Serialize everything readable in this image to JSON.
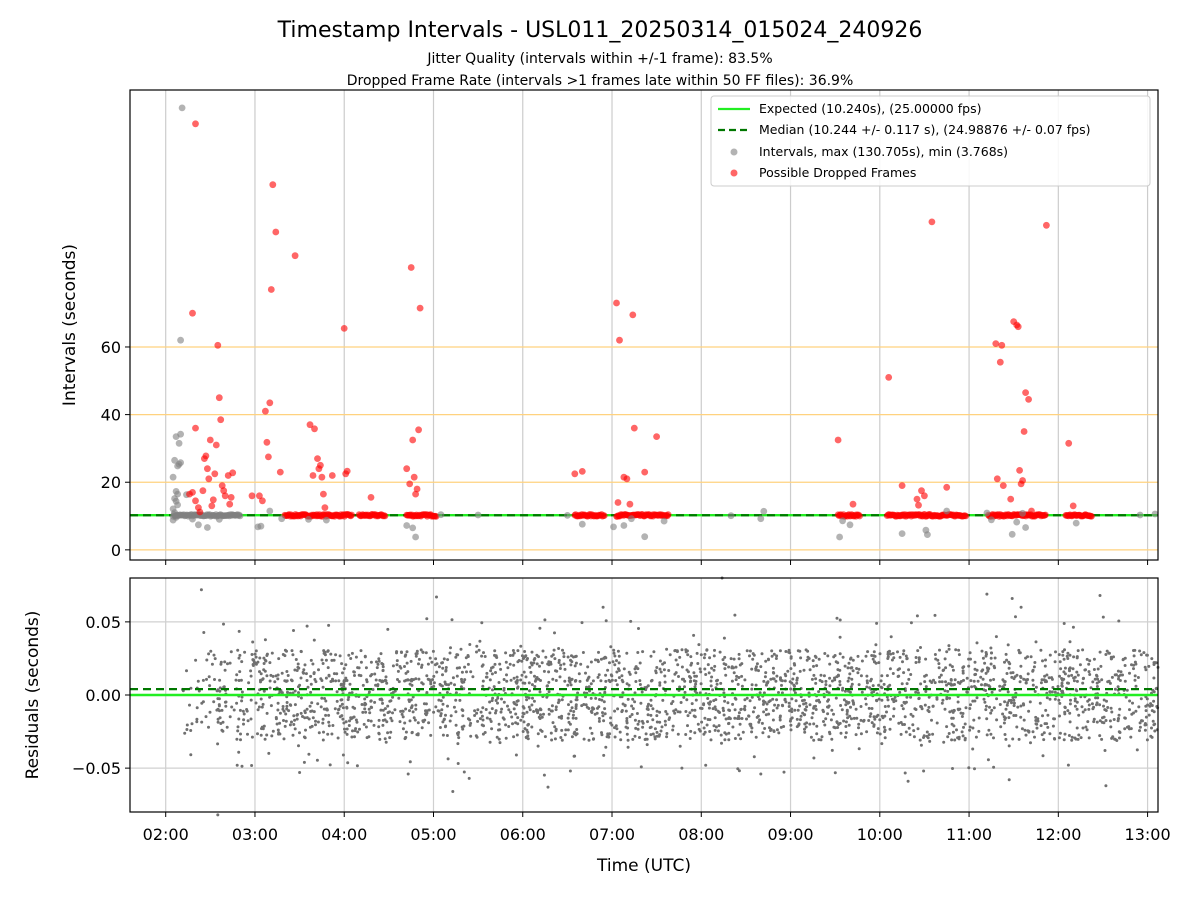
{
  "chart_data": [
    {
      "type": "scatter",
      "title": "Timestamp Intervals - USL011_20250314_015024_240926",
      "subtitle_lines": [
        "Jitter Quality (intervals within +/-1 frame): 83.5%",
        "Dropped Frame Rate (intervals >1 frames late within 50 FF files): 36.9%"
      ],
      "ylabel": "Intervals (seconds)",
      "xlim": [
        "01:36",
        "13:07"
      ],
      "ylim": [
        -3,
        136
      ],
      "yticks": [
        0,
        20,
        40,
        60
      ],
      "ytick_labels": [
        "0",
        "20",
        "40",
        "60"
      ],
      "x_gridlines": [
        "02:00",
        "03:00",
        "04:00",
        "05:00",
        "06:00",
        "07:00",
        "08:00",
        "09:00",
        "10:00",
        "11:00",
        "12:00",
        "13:00"
      ],
      "y_gridlines": [
        0,
        20,
        40,
        60
      ],
      "grid": true,
      "legend_position": "top-right",
      "expected_line": {
        "label": "Expected (10.240s), (25.00000 fps)",
        "value": 10.24,
        "color": "#22ee22"
      },
      "median_line": {
        "label": "Median (10.244 +/- 0.117 s), (24.98876 +/- 0.07 fps)",
        "value": 10.244,
        "color": "#007700"
      },
      "series": [
        {
          "name": "Intervals, max (130.705s), min (3.768s)",
          "color": "#808080",
          "points": [
            [
              "02:11",
              130.7
            ],
            [
              "02:07",
              33.5
            ],
            [
              "02:10",
              34.2
            ],
            [
              "02:09",
              31.5
            ],
            [
              "02:06",
              26.5
            ],
            [
              "02:08",
              24.8
            ],
            [
              "02:09",
              25.3
            ],
            [
              "02:10",
              25.8
            ],
            [
              "02:05",
              21.5
            ],
            [
              "02:07",
              17.3
            ],
            [
              "02:08",
              16.5
            ],
            [
              "02:06",
              15.2
            ],
            [
              "02:07",
              14.4
            ],
            [
              "02:08",
              13.3
            ],
            [
              "02:05",
              12.1
            ],
            [
              "02:06",
              11.0
            ],
            [
              "02:07",
              9.6
            ],
            [
              "02:05",
              8.8
            ],
            [
              "02:10",
              62.0
            ],
            [
              "02:14",
              16.3
            ],
            [
              "02:18",
              9.1
            ],
            [
              "02:22",
              7.4
            ],
            [
              "02:28",
              6.6
            ],
            [
              "02:36",
              9.0
            ],
            [
              "03:02",
              6.8
            ],
            [
              "03:04",
              7.0
            ],
            [
              "03:10",
              11.5
            ],
            [
              "03:18",
              9.2
            ],
            [
              "03:36",
              9.0
            ],
            [
              "03:48",
              8.8
            ],
            [
              "04:42",
              7.2
            ],
            [
              "04:48",
              3.8
            ],
            [
              "04:46",
              6.5
            ],
            [
              "05:05",
              10.4
            ],
            [
              "05:30",
              10.3
            ],
            [
              "06:30",
              10.2
            ],
            [
              "06:40",
              7.6
            ],
            [
              "07:01",
              6.8
            ],
            [
              "07:08",
              7.2
            ],
            [
              "07:13",
              9.2
            ],
            [
              "07:22",
              3.9
            ],
            [
              "07:35",
              8.5
            ],
            [
              "08:20",
              10.1
            ],
            [
              "08:40",
              9.2
            ],
            [
              "08:42",
              11.4
            ],
            [
              "09:35",
              8.6
            ],
            [
              "09:33",
              3.8
            ],
            [
              "09:40",
              7.4
            ],
            [
              "10:15",
              4.8
            ],
            [
              "10:31",
              5.8
            ],
            [
              "10:32",
              4.5
            ],
            [
              "10:45",
              11.5
            ],
            [
              "11:12",
              10.9
            ],
            [
              "11:15",
              8.9
            ],
            [
              "11:29",
              4.6
            ],
            [
              "11:32",
              8.2
            ],
            [
              "11:38",
              6.6
            ],
            [
              "11:36",
              10.8
            ],
            [
              "12:12",
              7.9
            ],
            [
              "12:55",
              10.3
            ],
            [
              "13:05",
              10.6
            ]
          ]
        },
        {
          "name": "Possible Dropped Frames",
          "color": "#ff0000",
          "points": [
            [
              "02:20",
              126.0
            ],
            [
              "02:18",
              70.0
            ],
            [
              "02:20",
              36.0
            ],
            [
              "02:16",
              16.5
            ],
            [
              "02:18",
              17.0
            ],
            [
              "02:20",
              14.5
            ],
            [
              "02:22",
              12.5
            ],
            [
              "02:23",
              11.2
            ],
            [
              "02:25",
              17.5
            ],
            [
              "02:26",
              27.0
            ],
            [
              "02:27",
              27.8
            ],
            [
              "02:28",
              24.0
            ],
            [
              "02:29",
              21.0
            ],
            [
              "02:30",
              32.5
            ],
            [
              "02:31",
              13.0
            ],
            [
              "02:32",
              14.8
            ],
            [
              "02:33",
              22.5
            ],
            [
              "02:34",
              31.0
            ],
            [
              "02:35",
              60.5
            ],
            [
              "02:36",
              45.0
            ],
            [
              "02:37",
              38.5
            ],
            [
              "02:38",
              19.0
            ],
            [
              "02:39",
              17.5
            ],
            [
              "02:40",
              16.0
            ],
            [
              "02:42",
              22.0
            ],
            [
              "02:45",
              22.8
            ],
            [
              "02:43",
              13.5
            ],
            [
              "02:44",
              15.5
            ],
            [
              "02:58",
              16.0
            ],
            [
              "03:03",
              16.0
            ],
            [
              "03:05",
              14.5
            ],
            [
              "03:07",
              41.0
            ],
            [
              "03:08",
              31.8
            ],
            [
              "03:09",
              27.5
            ],
            [
              "03:10",
              43.5
            ],
            [
              "03:11",
              77.0
            ],
            [
              "03:12",
              108.0
            ],
            [
              "03:14",
              94.0
            ],
            [
              "03:17",
              23.0
            ],
            [
              "03:27",
              87.0
            ],
            [
              "03:37",
              37.0
            ],
            [
              "03:40",
              35.8
            ],
            [
              "03:42",
              27.0
            ],
            [
              "03:43",
              24.0
            ],
            [
              "03:44",
              25.0
            ],
            [
              "03:45",
              21.5
            ],
            [
              "03:46",
              16.5
            ],
            [
              "03:47",
              12.5
            ],
            [
              "03:39",
              22.0
            ],
            [
              "03:52",
              22.0
            ],
            [
              "04:00",
              65.5
            ],
            [
              "04:01",
              22.5
            ],
            [
              "04:02",
              23.3
            ],
            [
              "04:18",
              15.5
            ],
            [
              "04:42",
              24.0
            ],
            [
              "04:44",
              19.5
            ],
            [
              "04:45",
              83.5
            ],
            [
              "04:46",
              32.5
            ],
            [
              "04:47",
              21.5
            ],
            [
              "04:48",
              16.5
            ],
            [
              "04:49",
              18.0
            ],
            [
              "04:50",
              35.5
            ],
            [
              "04:51",
              71.5
            ],
            [
              "06:35",
              22.5
            ],
            [
              "06:40",
              23.2
            ],
            [
              "07:03",
              73.0
            ],
            [
              "07:05",
              62.0
            ],
            [
              "07:08",
              21.5
            ],
            [
              "07:10",
              21.0
            ],
            [
              "07:14",
              69.5
            ],
            [
              "07:15",
              36.0
            ],
            [
              "07:22",
              23.0
            ],
            [
              "07:30",
              33.5
            ],
            [
              "07:04",
              14.0
            ],
            [
              "07:12",
              13.5
            ],
            [
              "09:32",
              32.5
            ],
            [
              "09:42",
              13.5
            ],
            [
              "10:06",
              51.0
            ],
            [
              "10:15",
              19.0
            ],
            [
              "10:25",
              15.0
            ],
            [
              "10:28",
              17.5
            ],
            [
              "10:30",
              16.0
            ],
            [
              "10:26",
              13.2
            ],
            [
              "10:35",
              97.0
            ],
            [
              "10:45",
              18.5
            ],
            [
              "11:18",
              61.0
            ],
            [
              "11:21",
              55.5
            ],
            [
              "11:22",
              60.5
            ],
            [
              "11:19",
              21.0
            ],
            [
              "11:23",
              19.0
            ],
            [
              "11:28",
              15.0
            ],
            [
              "11:30",
              67.5
            ],
            [
              "11:32",
              66.5
            ],
            [
              "11:33",
              66.0
            ],
            [
              "11:34",
              23.5
            ],
            [
              "11:35",
              19.5
            ],
            [
              "11:36",
              20.5
            ],
            [
              "11:38",
              46.5
            ],
            [
              "11:40",
              44.5
            ],
            [
              "11:37",
              35.0
            ],
            [
              "11:42",
              11.5
            ],
            [
              "11:52",
              96.0
            ],
            [
              "12:07",
              31.5
            ],
            [
              "12:10",
              13.0
            ]
          ]
        }
      ]
    },
    {
      "type": "scatter",
      "ylabel": "Residuals (seconds)",
      "xlabel": "Time (UTC)",
      "xlim": [
        "01:36",
        "13:07"
      ],
      "ylim": [
        -0.08,
        0.08
      ],
      "yticks": [
        -0.05,
        0.0,
        0.05
      ],
      "ytick_labels": [
        "−0.05",
        "0.00",
        "0.05"
      ],
      "xticks": [
        "02:00",
        "03:00",
        "04:00",
        "05:00",
        "06:00",
        "07:00",
        "08:00",
        "09:00",
        "10:00",
        "11:00",
        "12:00",
        "13:00"
      ],
      "grid": true,
      "zero_line": {
        "value": 0.0,
        "color": "#22ee22"
      },
      "median_line": {
        "value": 0.004,
        "color": "#007700"
      },
      "series": [
        {
          "name": "",
          "color": "#707070",
          "note_points": "~2900 residual points spread between 02:10 and 13:07, clustered in three bands near -0.02, 0.00 and 0.02 s, with outliers down to -0.08 and up to 0.08",
          "bands": [
            -0.02,
            0.0,
            0.02
          ],
          "outliers": [
            [
              "02:24",
              0.072
            ],
            [
              "02:35",
              -0.082
            ],
            [
              "03:30",
              -0.053
            ],
            [
              "04:43",
              -0.054
            ],
            [
              "05:02",
              0.067
            ],
            [
              "05:13",
              -0.066
            ],
            [
              "05:24",
              -0.057
            ],
            [
              "06:17",
              -0.063
            ],
            [
              "06:32",
              -0.052
            ],
            [
              "06:54",
              0.06
            ],
            [
              "07:47",
              -0.05
            ],
            [
              "08:14",
              0.08
            ],
            [
              "08:03",
              -0.048
            ],
            [
              "08:40",
              -0.054
            ],
            [
              "10:19",
              -0.059
            ],
            [
              "11:29",
              0.066
            ],
            [
              "11:27",
              -0.058
            ],
            [
              "11:12",
              0.069
            ],
            [
              "12:28",
              0.068
            ],
            [
              "12:32",
              -0.062
            ],
            [
              "11:35",
              0.06
            ]
          ]
        }
      ]
    }
  ],
  "legend": {
    "items": [
      {
        "label": "Expected (10.240s), (25.00000 fps)",
        "kind": "line-solid",
        "color": "#22ee22"
      },
      {
        "label": "Median (10.244 +/- 0.117 s), (24.98876 +/- 0.07 fps)",
        "kind": "line-dashed",
        "color": "#007700"
      },
      {
        "label": "Intervals, max (130.705s), min (3.768s)",
        "kind": "marker",
        "color": "#808080"
      },
      {
        "label": "Possible Dropped Frames",
        "kind": "marker",
        "color": "#ff0000"
      }
    ]
  },
  "colors": {
    "grid_vertical": "#cccccc",
    "grid_horizontal_top": "#ffd27f",
    "grid_bottom": "#d0d0d0"
  }
}
